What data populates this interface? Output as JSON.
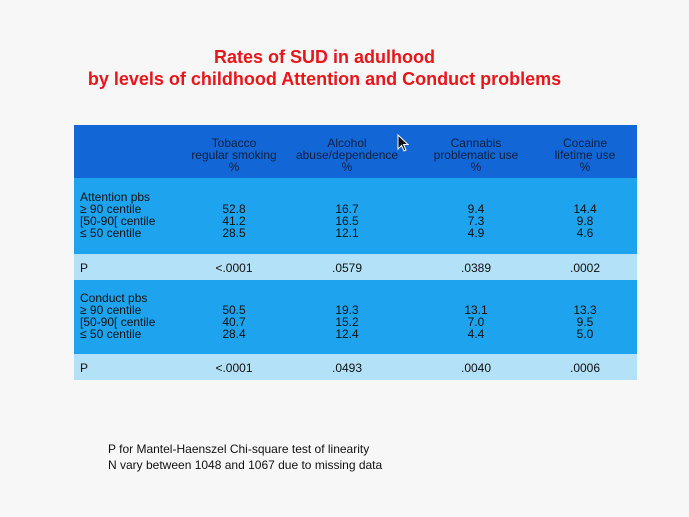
{
  "title": {
    "line1": "Rates of SUD in adulhood",
    "line2": "by levels of childhood Attention and Conduct problems"
  },
  "table": {
    "columns": [
      {
        "l1": "Tobacco",
        "l2": "regular smoking",
        "l3": "%"
      },
      {
        "l1": "Alcohol",
        "l2": "abuse/dependence",
        "l3": "%"
      },
      {
        "l1": "Cannabis",
        "l2": "problematic use",
        "l3": "%"
      },
      {
        "l1": "Cocaine",
        "l2": "lifetime use",
        "l3": "%"
      }
    ],
    "attention": {
      "labels": [
        "Attention pbs",
        "≥ 90 centile",
        "[50-90[ centile",
        "≤ 50 centile"
      ],
      "values": [
        [
          "52.8",
          "41.2",
          "28.5"
        ],
        [
          "16.7",
          "16.5",
          "12.1"
        ],
        [
          "9.4",
          "7.3",
          "4.9"
        ],
        [
          "14.4",
          "9.8",
          "4.6"
        ]
      ],
      "p_label": "P",
      "p": [
        "<.0001",
        ".0579",
        ".0389",
        ".0002"
      ]
    },
    "conduct": {
      "labels": [
        "Conduct pbs",
        "≥ 90 centile",
        "[50-90[ centile",
        "≤ 50 centile"
      ],
      "values": [
        [
          "50.5",
          "40.7",
          "28.4"
        ],
        [
          "19.3",
          "15.2",
          "12.4"
        ],
        [
          "13.1",
          "7.0",
          "4.4"
        ],
        [
          "13.3",
          "9.5",
          "5.0"
        ]
      ],
      "p_label": "P",
      "p": [
        "<.0001",
        ".0493",
        ".0040",
        ".0006"
      ]
    }
  },
  "footnotes": [
    "P for Mantel-Haenszel Chi-square test of linearity",
    "N vary between 1048 and 1067 due to missing data"
  ],
  "colors": {
    "title": "#e8151b",
    "header_bg": "#1366d6",
    "block_bg": "#1ea3ee",
    "p_row_bg": "#b3e1f7"
  }
}
